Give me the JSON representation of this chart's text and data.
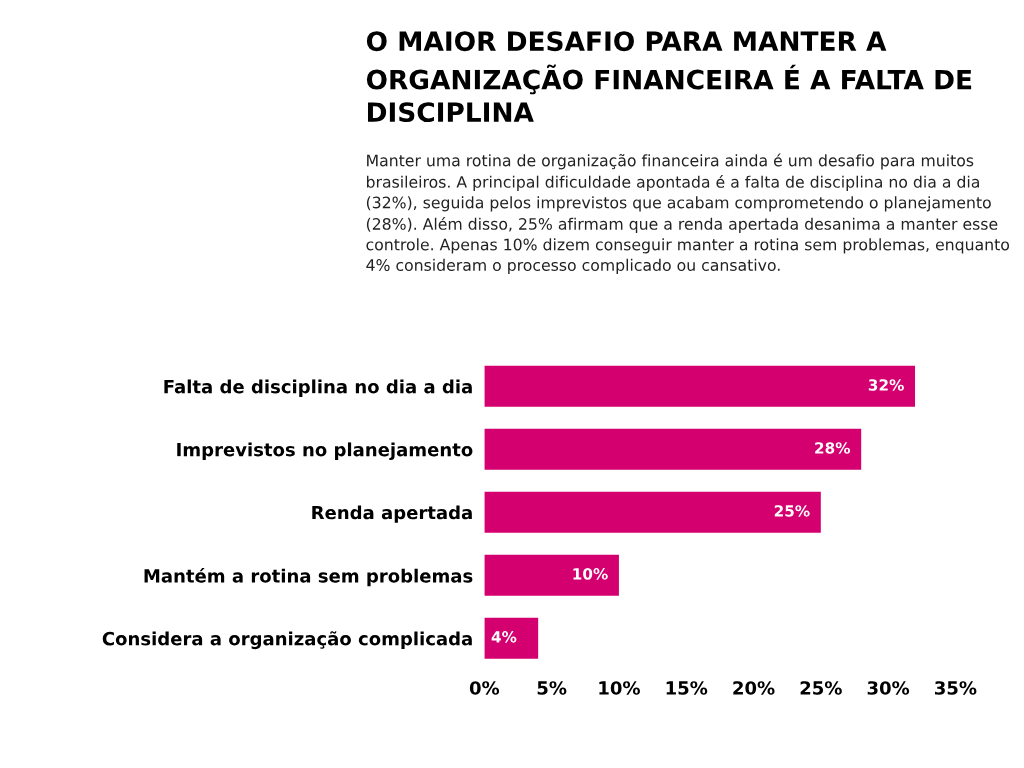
{
  "chart_data": {
    "type": "bar",
    "orientation": "horizontal",
    "title": "O MAIOR DESAFIO PARA MANTER A ORGANIZAÇÃO FINANCEIRA É A FALTA DE DISCIPLINA",
    "subtitle": "Manter uma rotina de organização financeira ainda é um desafio para muitos brasileiros. A principal dificuldade apontada é a falta de disciplina no dia a dia (32%), seguida pelos imprevistos que acabam comprometendo o planejamento (28%). Além disso, 25% afirmam que a renda apertada desanima a manter esse controle. Apenas 10% dizem conseguir manter a rotina sem problemas, enquanto 4% consideram o processo complicado ou cansativo.",
    "categories": [
      "Falta de disciplina no dia a dia",
      "Imprevistos no planejamento",
      "Renda apertada",
      "Mantém a rotina sem problemas",
      "Considera a organização complicada"
    ],
    "values": [
      32,
      28,
      25,
      10,
      4
    ],
    "value_labels": [
      "32%",
      "28%",
      "25%",
      "10%",
      "4%"
    ],
    "color": "#d4006f",
    "xlim": [
      0,
      35
    ],
    "xticks": [
      {
        "value": 0,
        "label": "0%"
      },
      {
        "value": 5,
        "label": "5%"
      },
      {
        "value": 10,
        "label": "10%"
      },
      {
        "value": 15,
        "label": "15%"
      },
      {
        "value": 20,
        "label": "20%"
      },
      {
        "value": 25,
        "label": "25%"
      },
      {
        "value": 30,
        "label": "30%"
      },
      {
        "value": 35,
        "label": "35%"
      }
    ],
    "grid": false,
    "legend": false
  }
}
